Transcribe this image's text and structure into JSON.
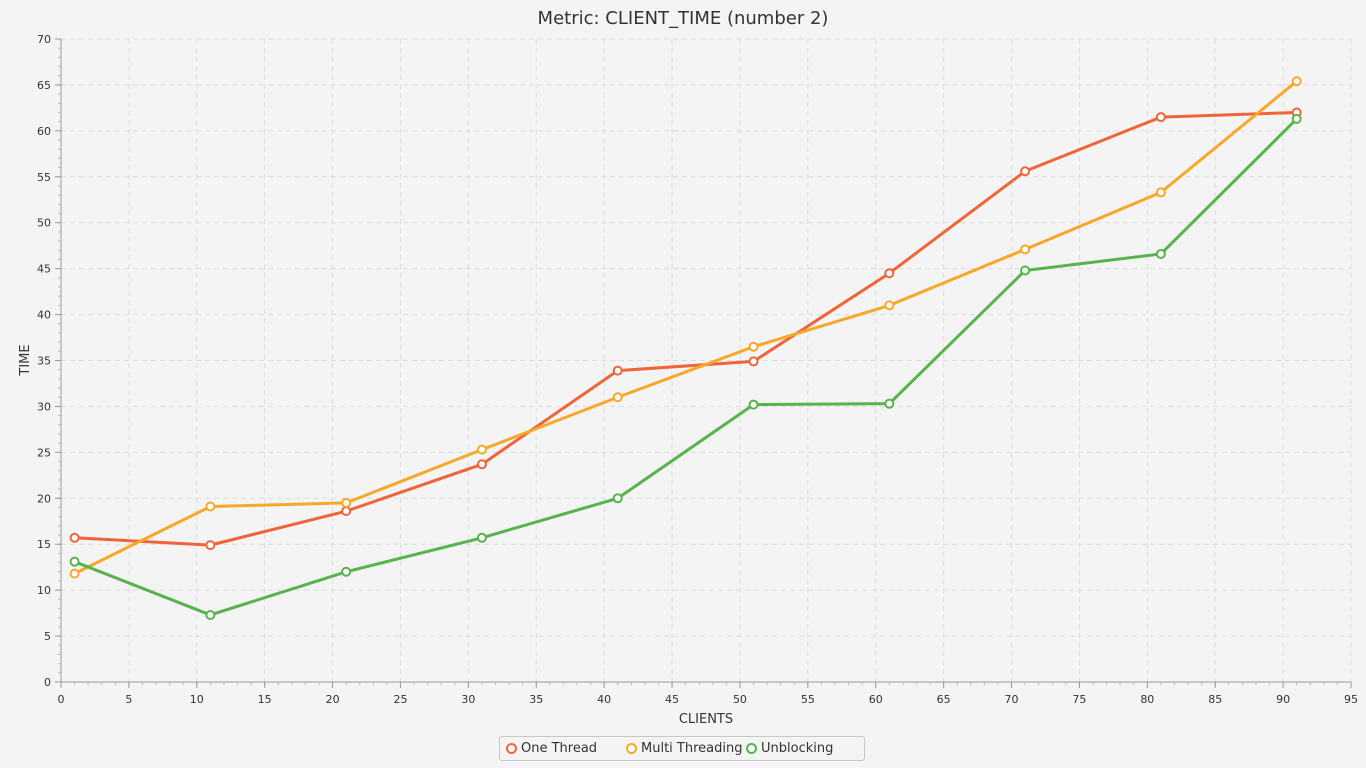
{
  "chart_data": {
    "type": "line",
    "title": "Metric: CLIENT_TIME (number 2)",
    "xlabel": "CLIENTS",
    "ylabel": "TIME",
    "xlim": [
      0,
      95
    ],
    "ylim": [
      0,
      70
    ],
    "x_ticks": [
      0,
      5,
      10,
      15,
      20,
      25,
      30,
      35,
      40,
      45,
      50,
      55,
      60,
      65,
      70,
      75,
      80,
      85,
      90,
      95
    ],
    "y_ticks": [
      0,
      5,
      10,
      15,
      20,
      25,
      30,
      35,
      40,
      45,
      50,
      55,
      60,
      65,
      70
    ],
    "grid": true,
    "legend_position": "bottom-center",
    "x": [
      1,
      11,
      21,
      31,
      41,
      51,
      61,
      71,
      81,
      91
    ],
    "series": [
      {
        "name": "One Thread",
        "color": "#f0643a",
        "values": [
          15.7,
          14.9,
          18.6,
          23.7,
          33.9,
          34.9,
          44.5,
          55.6,
          61.5,
          62.0
        ]
      },
      {
        "name": "Multi Threading",
        "color": "#f7a828",
        "values": [
          11.8,
          19.1,
          19.5,
          25.3,
          31.0,
          36.5,
          41.0,
          47.1,
          53.3,
          65.4
        ]
      },
      {
        "name": "Unblocking",
        "color": "#57b44c",
        "values": [
          13.1,
          7.3,
          12.0,
          15.7,
          20.0,
          30.2,
          30.3,
          44.8,
          46.6,
          61.3
        ]
      }
    ]
  }
}
